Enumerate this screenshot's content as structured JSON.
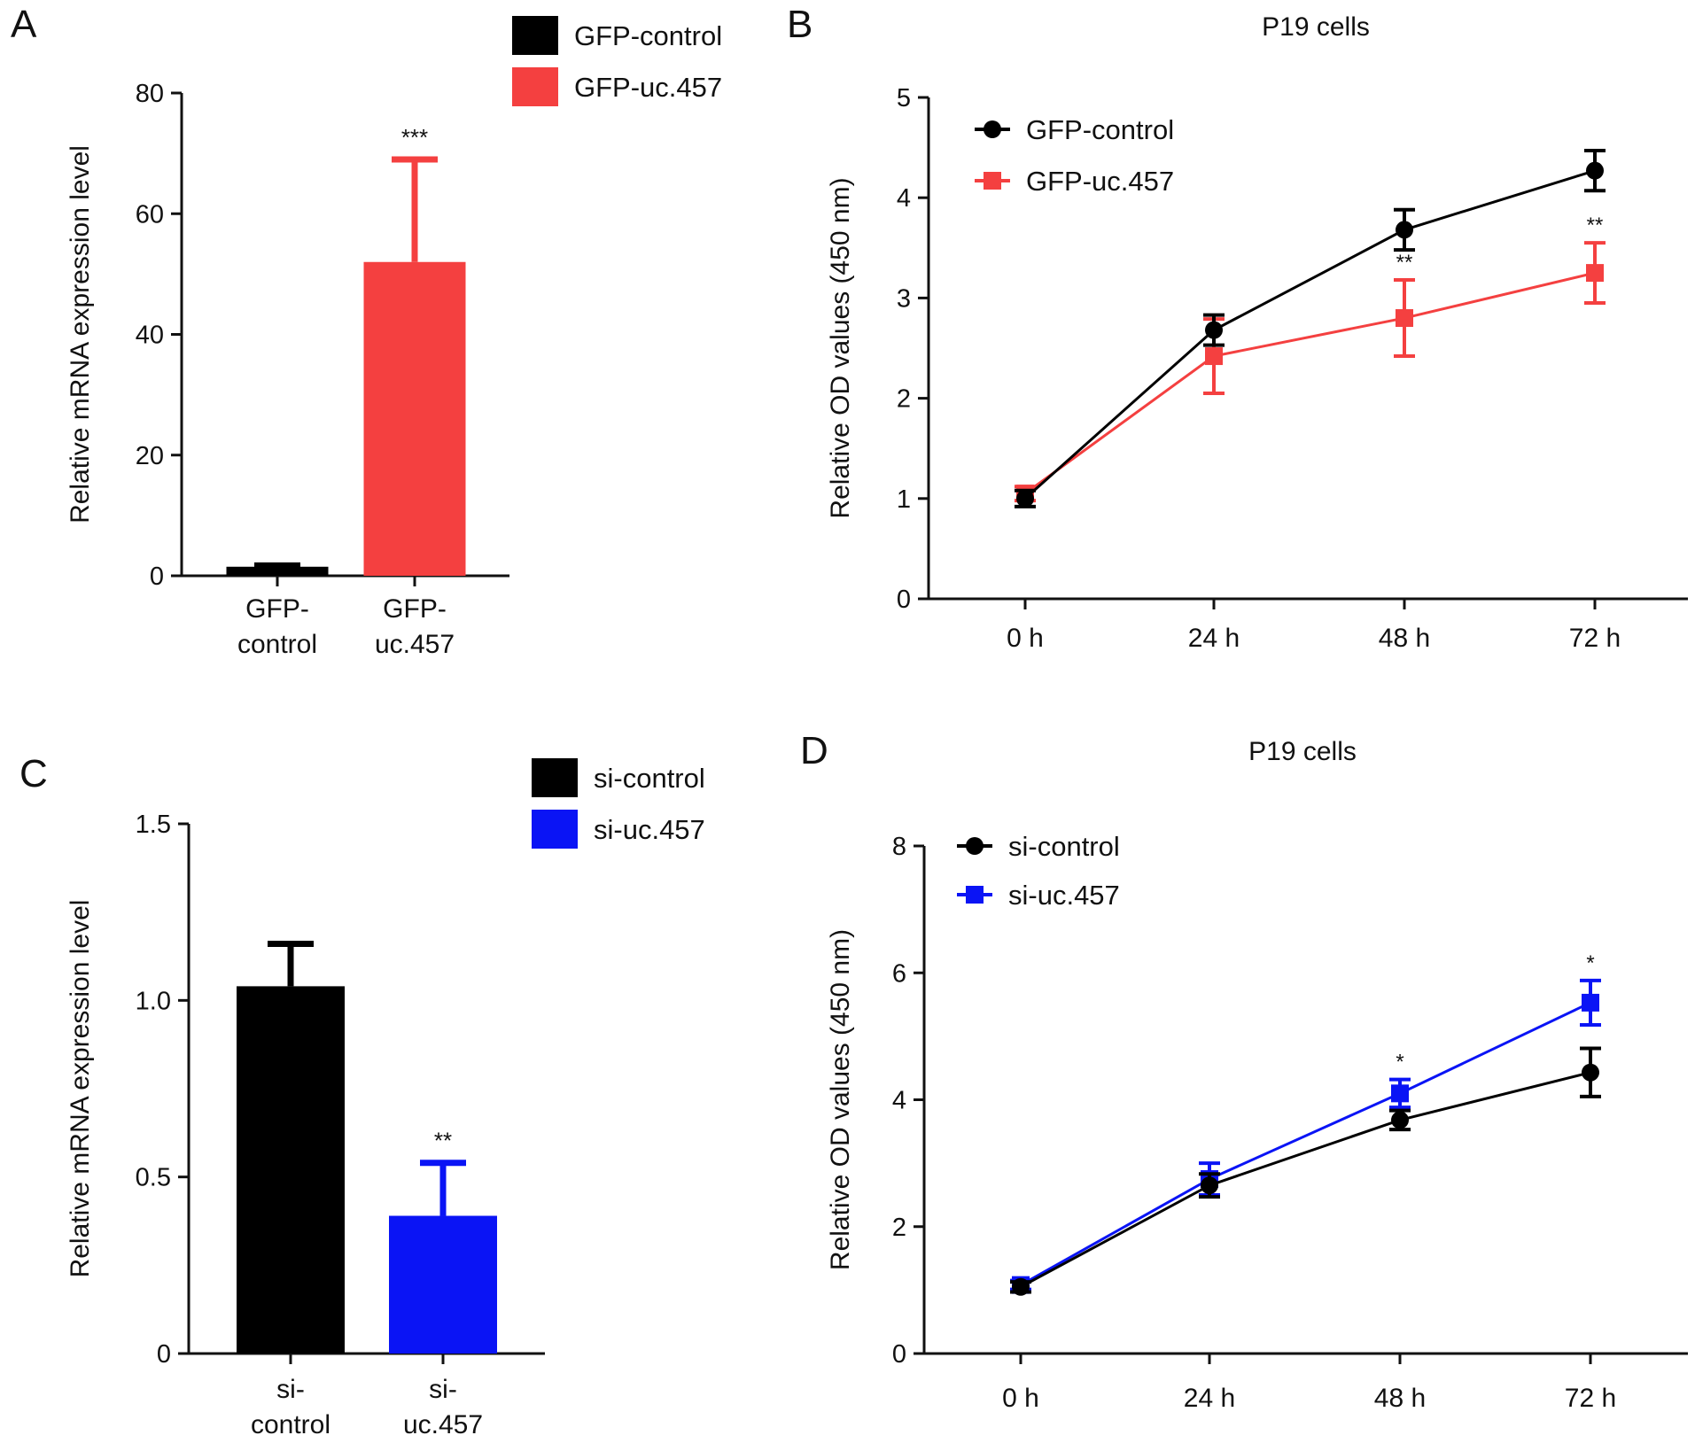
{
  "chart_data": [
    {
      "panel": "A",
      "type": "bar",
      "title": "",
      "xlabel": "",
      "ylabel": "Relative mRNA expression level",
      "ylim": [
        0,
        80
      ],
      "yticks": [
        "0",
        "20",
        "40",
        "60",
        "80"
      ],
      "categories": [
        [
          "GFP-",
          "control"
        ],
        [
          "GFP-",
          "uc.457"
        ]
      ],
      "values": [
        1.5,
        52
      ],
      "errors": [
        0.2,
        17
      ],
      "significance": [
        "",
        "***"
      ],
      "colors": [
        "#000000",
        "#f44040"
      ],
      "legend": {
        "position": "top-right",
        "entries": [
          "GFP-control",
          "GFP-uc.457"
        ]
      }
    },
    {
      "panel": "B",
      "type": "line",
      "title": "P19 cells",
      "xlabel": "",
      "ylabel": "Relative OD values (450 nm)",
      "ylim": [
        0,
        5
      ],
      "yticks": [
        "0",
        "1",
        "2",
        "3",
        "4",
        "5"
      ],
      "x": [
        "0 h",
        "24 h",
        "48 h",
        "72 h"
      ],
      "series": [
        {
          "name": "GFP-control",
          "marker": "circle",
          "color": "#000000",
          "values": [
            1.0,
            2.68,
            3.68,
            4.27
          ],
          "errors": [
            0.08,
            0.15,
            0.2,
            0.2
          ],
          "significance": [
            "",
            "",
            "",
            ""
          ]
        },
        {
          "name": "GFP-uc.457",
          "marker": "square",
          "color": "#f44040",
          "values": [
            1.05,
            2.42,
            2.8,
            3.25
          ],
          "errors": [
            0.07,
            0.37,
            0.38,
            0.3
          ],
          "significance": [
            "",
            "",
            "**",
            "**"
          ]
        }
      ],
      "legend": {
        "position": "top-left"
      }
    },
    {
      "panel": "C",
      "type": "bar",
      "title": "",
      "xlabel": "",
      "ylabel": "Relative mRNA expression level",
      "ylim": [
        0,
        1.5
      ],
      "yticks": [
        "0",
        "0.5",
        "1.0",
        "1.5"
      ],
      "categories": [
        [
          "si-",
          "control"
        ],
        [
          "si-",
          "uc.457"
        ]
      ],
      "values": [
        1.04,
        0.39
      ],
      "errors": [
        0.12,
        0.15
      ],
      "significance": [
        "",
        "**"
      ],
      "colors": [
        "#000000",
        "#0a14f5"
      ],
      "legend": {
        "position": "top-right",
        "entries": [
          "si-control",
          "si-uc.457"
        ]
      }
    },
    {
      "panel": "D",
      "type": "line",
      "title": "P19 cells",
      "xlabel": "",
      "ylabel": "Relative OD values (450 nm)",
      "ylim": [
        0,
        8
      ],
      "yticks": [
        "0",
        "2",
        "4",
        "6",
        "8"
      ],
      "x": [
        "0 h",
        "24 h",
        "48 h",
        "72 h"
      ],
      "series": [
        {
          "name": "si-control",
          "marker": "circle",
          "color": "#000000",
          "values": [
            1.05,
            2.65,
            3.68,
            4.43
          ],
          "errors": [
            0.08,
            0.18,
            0.15,
            0.38
          ],
          "significance": [
            "",
            "",
            "",
            ""
          ]
        },
        {
          "name": "si-uc.457",
          "marker": "square",
          "color": "#0a14f5",
          "values": [
            1.08,
            2.75,
            4.1,
            5.53
          ],
          "errors": [
            0.07,
            0.25,
            0.22,
            0.35
          ],
          "significance": [
            "",
            "",
            "*",
            "*"
          ]
        }
      ],
      "legend": {
        "position": "top-left"
      }
    }
  ]
}
